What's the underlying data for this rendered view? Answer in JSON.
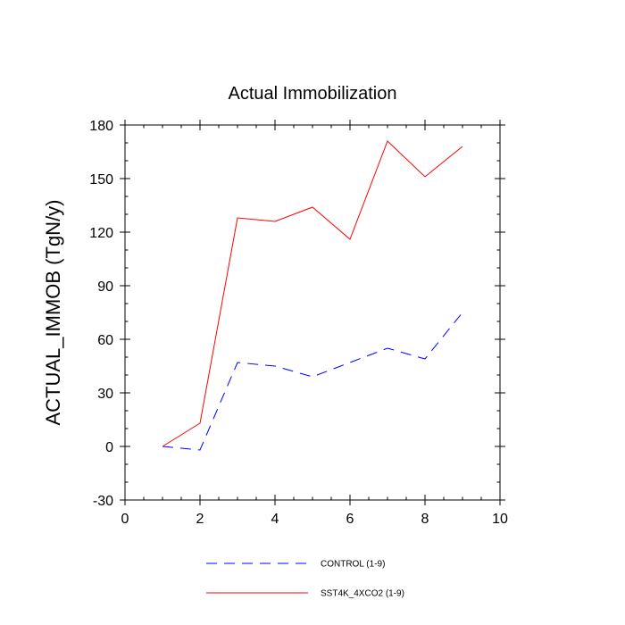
{
  "chart_data": {
    "type": "line",
    "title": "Actual Immobilization",
    "xlabel": "",
    "ylabel": "ACTUAL_IMMOB  (TgN/y)",
    "xlim": [
      0,
      10
    ],
    "ylim": [
      -30,
      180
    ],
    "x_ticks": [
      0,
      2,
      4,
      6,
      8,
      10
    ],
    "x_tick_labels": [
      "0",
      "2",
      "4",
      "6",
      "8",
      "10"
    ],
    "y_ticks": [
      -30,
      0,
      30,
      60,
      90,
      120,
      150,
      180
    ],
    "y_tick_labels": [
      "-30",
      "0",
      "30",
      "60",
      "90",
      "120",
      "150",
      "180"
    ],
    "x_minor_step": 0.5,
    "y_minor_step": 10,
    "grid": false,
    "legend_position": "bottom-center",
    "x": [
      1,
      2,
      3,
      4,
      5,
      6,
      7,
      8,
      9
    ],
    "series": [
      {
        "name": "CONTROL (1-9)",
        "color": "#0000ff",
        "style": "dashed",
        "values": [
          0,
          -2,
          47,
          45,
          39,
          47,
          55,
          49,
          75
        ]
      },
      {
        "name": "SST4K_4XCO2 (1-9)",
        "color": "#ff0000",
        "style": "solid",
        "values": [
          0,
          13,
          128,
          126,
          134,
          116,
          171,
          151,
          168
        ]
      }
    ]
  }
}
